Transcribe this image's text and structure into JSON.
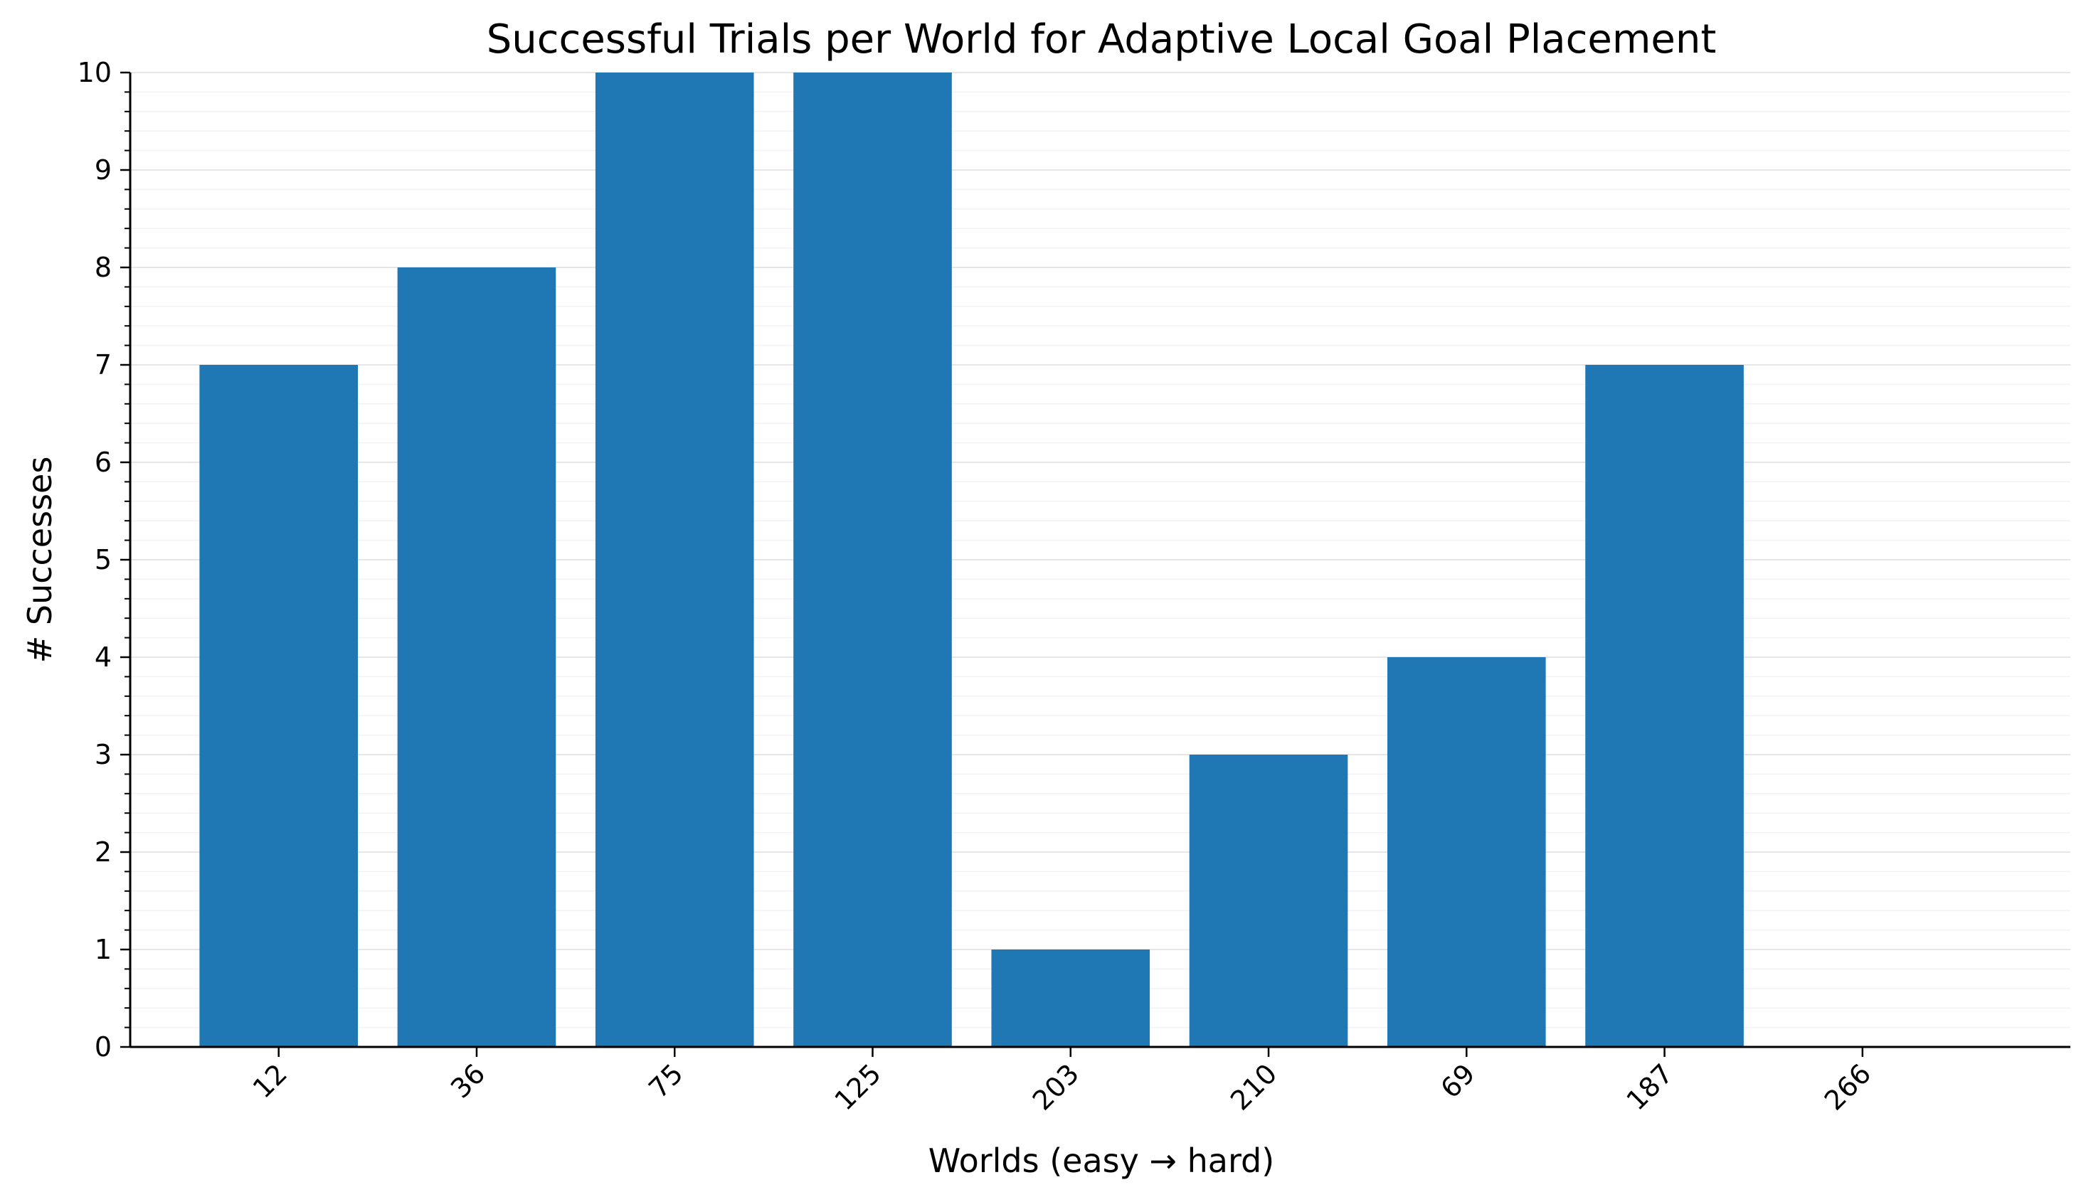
{
  "chart_data": {
    "type": "bar",
    "title": "Successful Trials per World for Adaptive Local Goal Placement",
    "xlabel": "Worlds (easy → hard)",
    "ylabel": "# Successes",
    "categories": [
      "12",
      "36",
      "75",
      "125",
      "203",
      "210",
      "69",
      "187",
      "266"
    ],
    "values": [
      7,
      8,
      10,
      10,
      1,
      3,
      4,
      7,
      0
    ],
    "ylim": [
      0,
      10
    ],
    "yticks": [
      "0",
      "1",
      "2",
      "3",
      "4",
      "5",
      "6",
      "7",
      "8",
      "9",
      "10"
    ],
    "grid": true,
    "legend": "none",
    "bar_color": "#1f77b4",
    "grid_color": "#e6e6e6",
    "minor_grid_color": "#f3f3f3",
    "axis_color": "#000000"
  }
}
